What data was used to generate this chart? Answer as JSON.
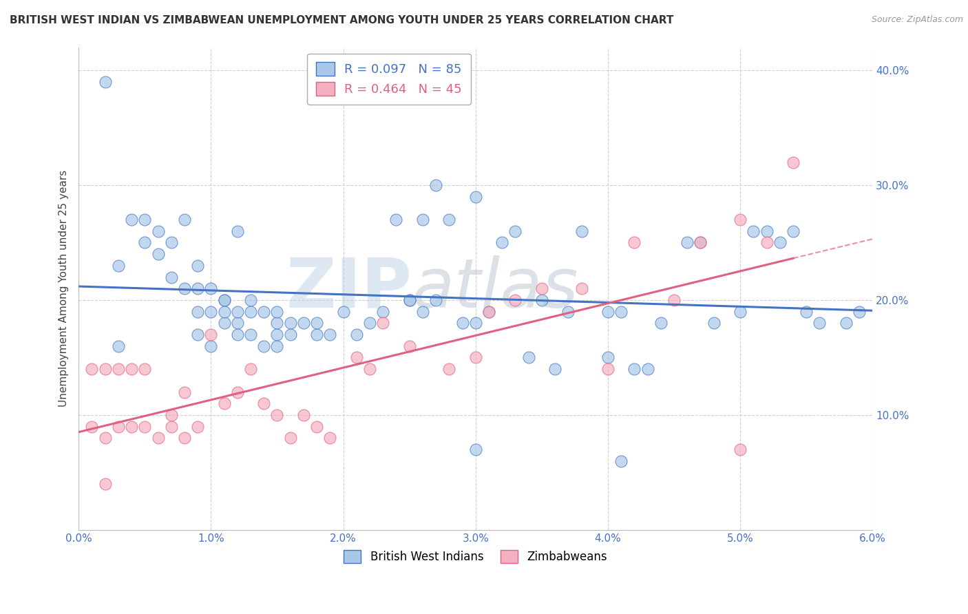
{
  "title": "BRITISH WEST INDIAN VS ZIMBABWEAN UNEMPLOYMENT AMONG YOUTH UNDER 25 YEARS CORRELATION CHART",
  "source": "Source: ZipAtlas.com",
  "ylabel": "Unemployment Among Youth under 25 years",
  "xlabel_ticks": [
    "0.0%",
    "1.0%",
    "2.0%",
    "3.0%",
    "4.0%",
    "5.0%",
    "6.0%"
  ],
  "xlabel_vals": [
    0.0,
    0.01,
    0.02,
    0.03,
    0.04,
    0.05,
    0.06
  ],
  "ylabel_ticks": [
    "40.0%",
    "30.0%",
    "20.0%",
    "10.0%"
  ],
  "ylabel_vals": [
    0.4,
    0.3,
    0.2,
    0.1
  ],
  "blue_R": 0.097,
  "blue_N": 85,
  "pink_R": 0.464,
  "pink_N": 45,
  "blue_color": "#a8c8e8",
  "pink_color": "#f4b0c0",
  "blue_line_color": "#4472c4",
  "pink_line_color": "#e06080",
  "watermark_text": "ZIP",
  "watermark_text2": "atlas",
  "legend_blue_label": "R = 0.097   N = 85",
  "legend_pink_label": "R = 0.464   N = 45",
  "blue_scatter_x": [
    0.002,
    0.003,
    0.004,
    0.005,
    0.005,
    0.006,
    0.006,
    0.007,
    0.007,
    0.008,
    0.008,
    0.009,
    0.009,
    0.009,
    0.01,
    0.01,
    0.01,
    0.011,
    0.011,
    0.011,
    0.011,
    0.012,
    0.012,
    0.012,
    0.013,
    0.013,
    0.013,
    0.014,
    0.014,
    0.015,
    0.015,
    0.015,
    0.016,
    0.016,
    0.017,
    0.018,
    0.018,
    0.019,
    0.02,
    0.021,
    0.022,
    0.023,
    0.024,
    0.025,
    0.026,
    0.026,
    0.027,
    0.028,
    0.029,
    0.03,
    0.031,
    0.032,
    0.033,
    0.034,
    0.035,
    0.036,
    0.037,
    0.038,
    0.04,
    0.041,
    0.042,
    0.043,
    0.044,
    0.046,
    0.047,
    0.048,
    0.05,
    0.051,
    0.053,
    0.054,
    0.055,
    0.056,
    0.058,
    0.059,
    0.003,
    0.009,
    0.012,
    0.015,
    0.027,
    0.03,
    0.041,
    0.052,
    0.04,
    0.03,
    0.025
  ],
  "blue_scatter_y": [
    0.39,
    0.23,
    0.27,
    0.27,
    0.25,
    0.26,
    0.24,
    0.22,
    0.25,
    0.21,
    0.27,
    0.23,
    0.19,
    0.21,
    0.19,
    0.21,
    0.16,
    0.2,
    0.18,
    0.2,
    0.19,
    0.18,
    0.19,
    0.17,
    0.19,
    0.2,
    0.17,
    0.19,
    0.16,
    0.18,
    0.17,
    0.16,
    0.18,
    0.17,
    0.18,
    0.17,
    0.18,
    0.17,
    0.19,
    0.17,
    0.18,
    0.19,
    0.27,
    0.2,
    0.27,
    0.19,
    0.2,
    0.27,
    0.18,
    0.29,
    0.19,
    0.25,
    0.26,
    0.15,
    0.2,
    0.14,
    0.19,
    0.26,
    0.19,
    0.06,
    0.14,
    0.14,
    0.18,
    0.25,
    0.25,
    0.18,
    0.19,
    0.26,
    0.25,
    0.26,
    0.19,
    0.18,
    0.18,
    0.19,
    0.16,
    0.17,
    0.26,
    0.19,
    0.3,
    0.07,
    0.19,
    0.26,
    0.15,
    0.18,
    0.2
  ],
  "pink_scatter_x": [
    0.001,
    0.001,
    0.002,
    0.002,
    0.003,
    0.003,
    0.004,
    0.004,
    0.005,
    0.005,
    0.006,
    0.007,
    0.007,
    0.008,
    0.008,
    0.009,
    0.01,
    0.011,
    0.012,
    0.013,
    0.014,
    0.015,
    0.016,
    0.017,
    0.018,
    0.019,
    0.021,
    0.022,
    0.023,
    0.025,
    0.028,
    0.03,
    0.031,
    0.033,
    0.035,
    0.038,
    0.04,
    0.042,
    0.045,
    0.047,
    0.05,
    0.052,
    0.054,
    0.002,
    0.05
  ],
  "pink_scatter_y": [
    0.14,
    0.09,
    0.14,
    0.08,
    0.14,
    0.09,
    0.14,
    0.09,
    0.14,
    0.09,
    0.08,
    0.1,
    0.09,
    0.12,
    0.08,
    0.09,
    0.17,
    0.11,
    0.12,
    0.14,
    0.11,
    0.1,
    0.08,
    0.1,
    0.09,
    0.08,
    0.15,
    0.14,
    0.18,
    0.16,
    0.14,
    0.15,
    0.19,
    0.2,
    0.21,
    0.21,
    0.14,
    0.25,
    0.2,
    0.25,
    0.27,
    0.25,
    0.32,
    0.04,
    0.07
  ]
}
